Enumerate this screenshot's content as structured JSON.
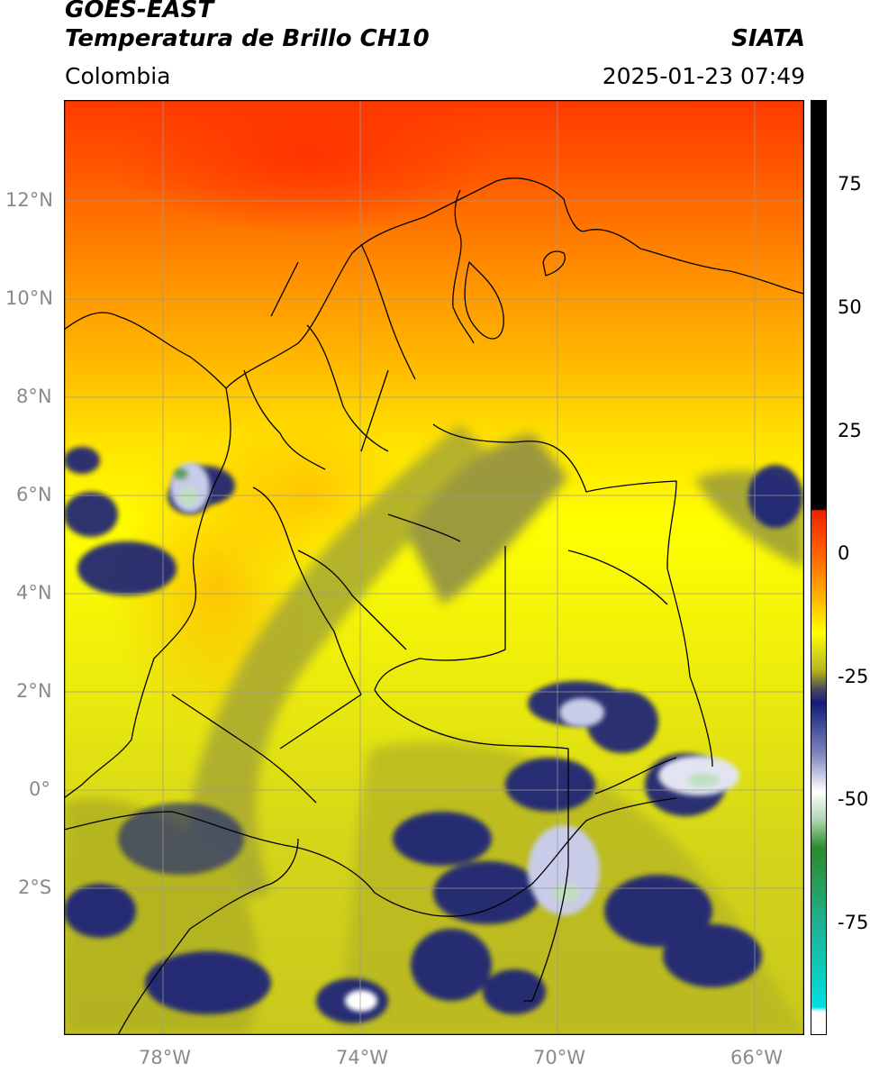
{
  "header": {
    "title_line1": "GOES-EAST",
    "title_line2": "Temperatura de Brillo CH10",
    "source": "SIATA",
    "region": "Colombia",
    "datetime": "2025-01-23 07:49"
  },
  "map": {
    "lon_range": [
      -80,
      -65
    ],
    "lat_range": [
      -4.7,
      14.3
    ],
    "lat_labels": [
      "12°N",
      "10°N",
      "8°N",
      "6°N",
      "4°N",
      "2°N",
      "0°",
      "2°S"
    ],
    "lon_labels": [
      "78°W",
      "74°W",
      "70°W",
      "66°W"
    ]
  },
  "colorbar": {
    "ticks": [
      "75",
      "50",
      "25",
      "0",
      "-25",
      "-50",
      "-75"
    ],
    "range": [
      -100,
      90
    ],
    "colors": {
      "hot": "#000000",
      "red": "#ee2200",
      "orange": "#ff8c00",
      "yellow": "#ffff00",
      "olive": "#b5b518",
      "navy": "#141c7c",
      "white": "#ffffff",
      "green": "#2c8a2c",
      "cyan": "#00e0e0"
    }
  }
}
